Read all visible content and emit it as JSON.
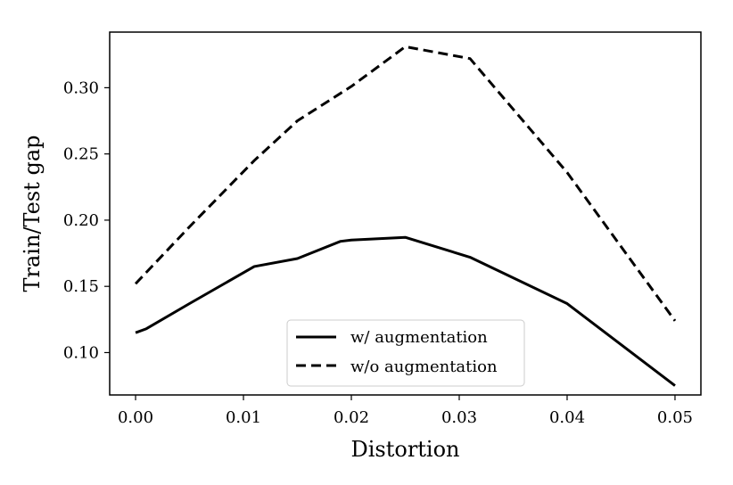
{
  "chart_data": {
    "type": "line",
    "title": "",
    "xlabel": "Distortion",
    "ylabel": "Train/Test gap",
    "xlim": [
      -0.0024,
      0.0524
    ],
    "ylim": [
      0.068,
      0.342
    ],
    "xticks": [
      0.0,
      0.01,
      0.02,
      0.03,
      0.04,
      0.05
    ],
    "xtick_labels": [
      "0.00",
      "0.01",
      "0.02",
      "0.03",
      "0.04",
      "0.05"
    ],
    "yticks": [
      0.1,
      0.15,
      0.2,
      0.25,
      0.3
    ],
    "ytick_labels": [
      "0.10",
      "0.15",
      "0.20",
      "0.25",
      "0.30"
    ],
    "grid": false,
    "legend": {
      "position": "lower-center"
    },
    "series": [
      {
        "name": "w/ augmentation",
        "style": "solid",
        "color": "#000000",
        "x": [
          0.0,
          0.001,
          0.005,
          0.011,
          0.015,
          0.019,
          0.02,
          0.025,
          0.031,
          0.04,
          0.05
        ],
        "y": [
          0.115,
          0.118,
          0.137,
          0.165,
          0.171,
          0.184,
          0.185,
          0.187,
          0.172,
          0.137,
          0.075
        ]
      },
      {
        "name": "w/o augmentation",
        "style": "dashed",
        "color": "#000000",
        "x": [
          0.0,
          0.005,
          0.011,
          0.015,
          0.02,
          0.025,
          0.031,
          0.04,
          0.05
        ],
        "y": [
          0.152,
          0.195,
          0.245,
          0.275,
          0.301,
          0.331,
          0.322,
          0.236,
          0.124
        ]
      }
    ]
  }
}
